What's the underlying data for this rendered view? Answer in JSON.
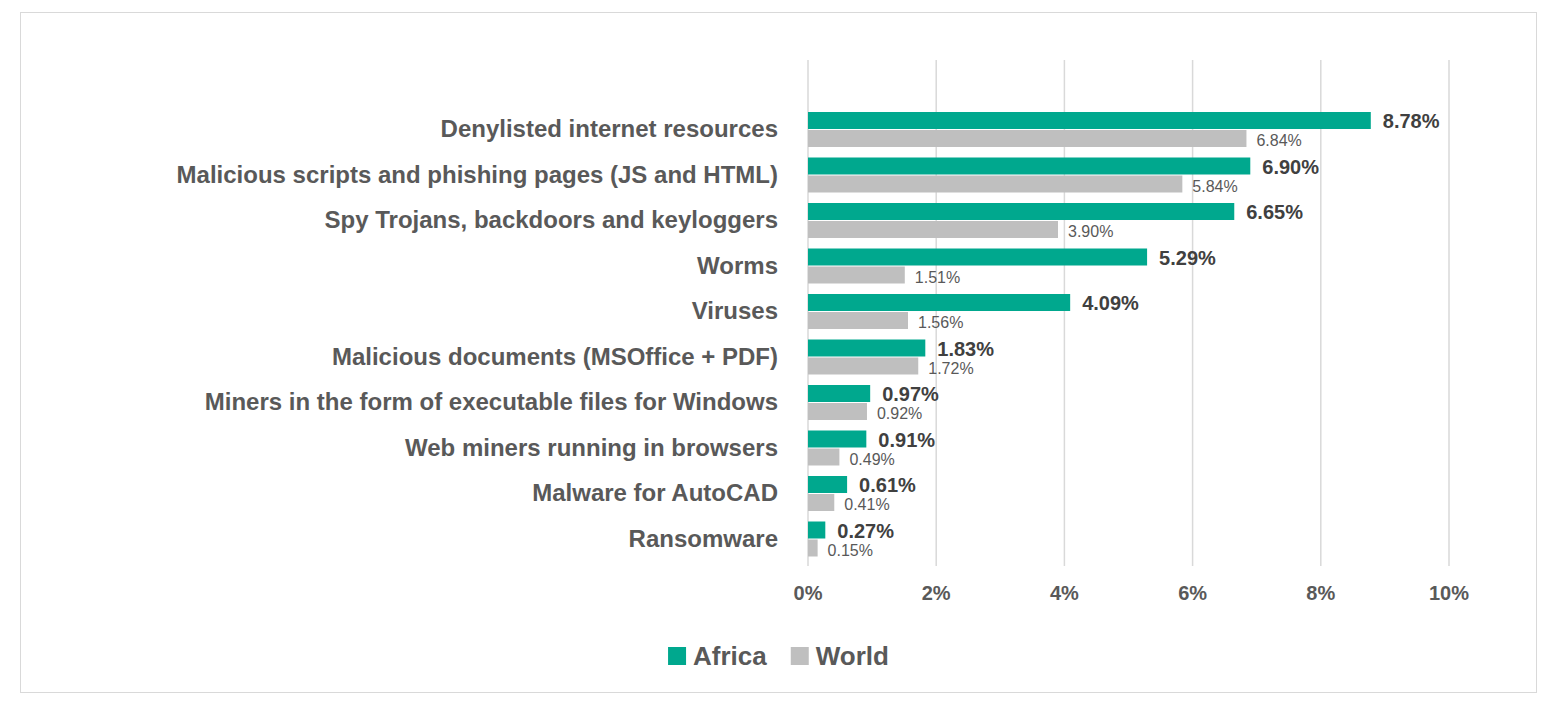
{
  "chart_data": {
    "type": "bar",
    "orientation": "horizontal",
    "categories": [
      "Denylisted internet resources",
      "Malicious scripts and phishing pages (JS and HTML)",
      "Spy Trojans, backdoors and keyloggers",
      "Worms",
      "Viruses",
      "Malicious documents (MSOffice + PDF)",
      "Miners in the form of executable files for Windows",
      "Web miners running in browsers",
      "Malware for AutoCAD",
      "Ransomware"
    ],
    "series": [
      {
        "name": "Africa",
        "color": "#00a88e",
        "values": [
          8.78,
          6.9,
          6.65,
          5.29,
          4.09,
          1.83,
          0.97,
          0.91,
          0.61,
          0.27
        ],
        "value_labels": [
          "8.78%",
          "6.90%",
          "6.65%",
          "5.29%",
          "4.09%",
          "1.83%",
          "0.97%",
          "0.91%",
          "0.61%",
          "0.27%"
        ]
      },
      {
        "name": "World",
        "color": "#bfbfbf",
        "values": [
          6.84,
          5.84,
          3.9,
          1.51,
          1.56,
          1.72,
          0.92,
          0.49,
          0.41,
          0.15
        ],
        "value_labels": [
          "6.84%",
          "5.84%",
          "3.90%",
          "1.51%",
          "1.56%",
          "1.72%",
          "0.92%",
          "0.49%",
          "0.41%",
          "0.15%"
        ]
      }
    ],
    "xlim": [
      0,
      10
    ],
    "xticks": [
      {
        "value": 0,
        "label": "0%"
      },
      {
        "value": 2,
        "label": "2%"
      },
      {
        "value": 4,
        "label": "4%"
      },
      {
        "value": 6,
        "label": "6%"
      },
      {
        "value": 8,
        "label": "8%"
      },
      {
        "value": 10,
        "label": "10%"
      }
    ],
    "grid": true,
    "data_labels": true,
    "legend": "bottom"
  }
}
